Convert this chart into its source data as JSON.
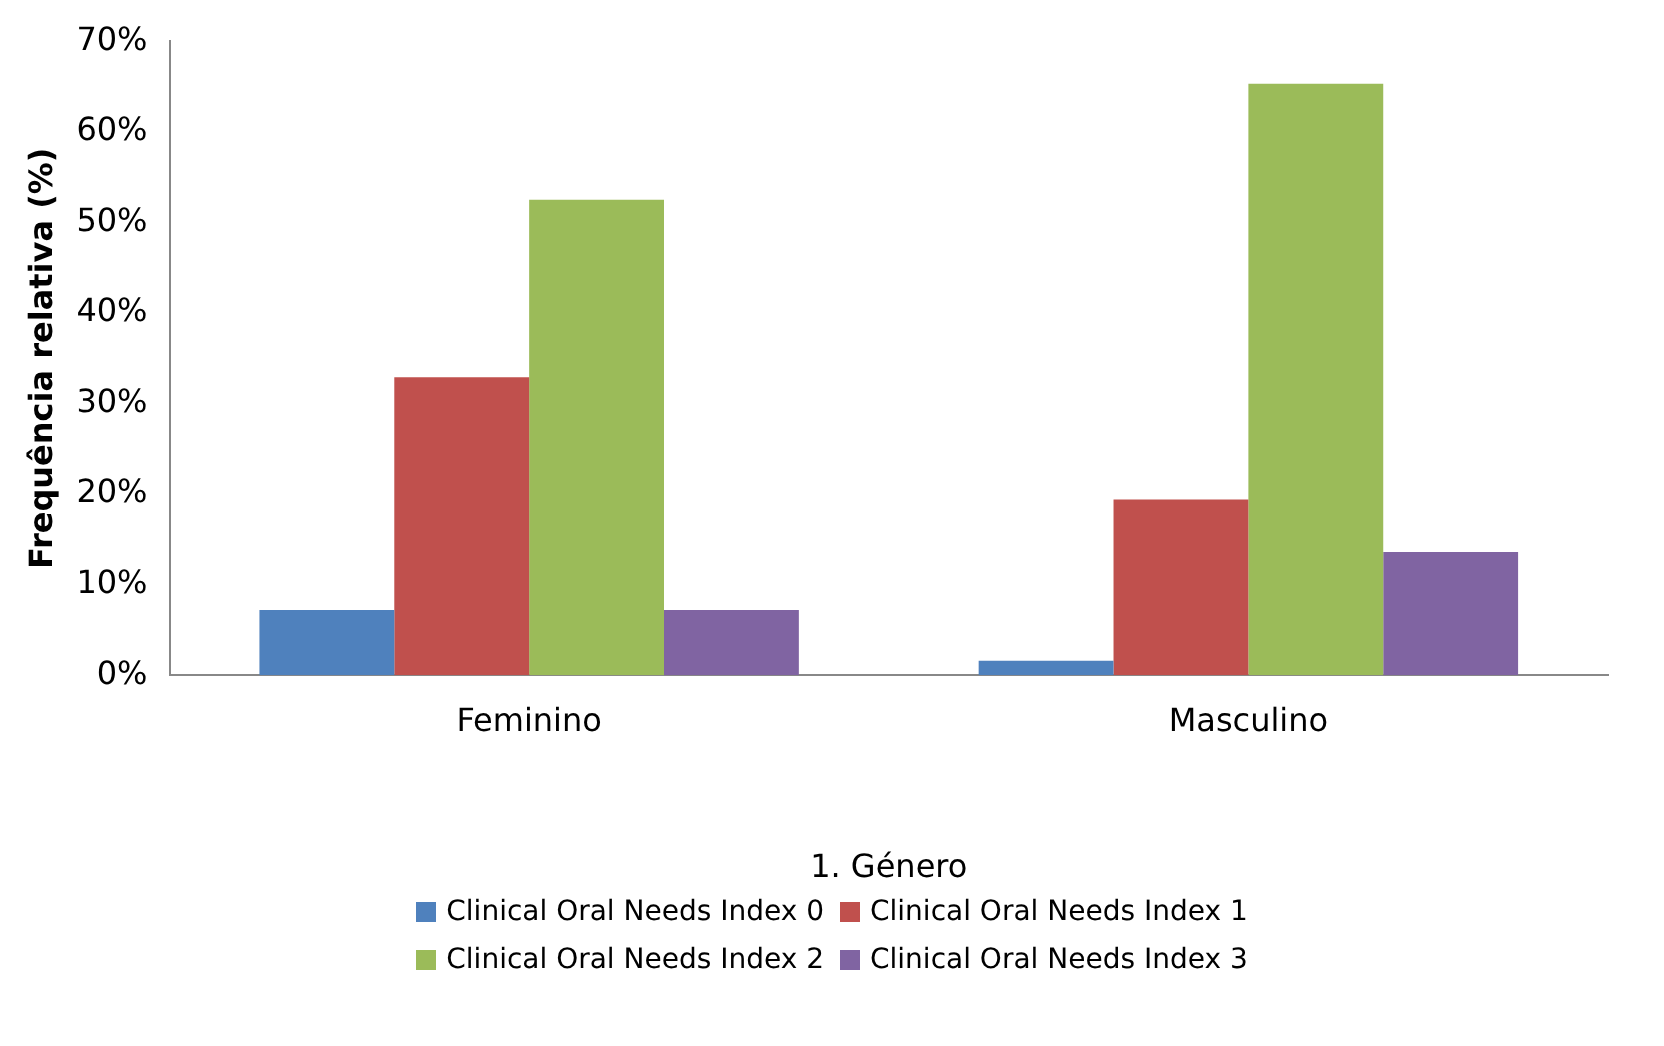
{
  "chart_data": {
    "type": "bar",
    "ylabel": "Frequência relativa (%)",
    "xlabel": "1. Género",
    "categories": [
      "Feminino",
      "Masculino"
    ],
    "series": [
      {
        "name": "Clinical Oral Needs Index 0",
        "color": "#4f81bd",
        "values": [
          7.2,
          1.6
        ]
      },
      {
        "name": "Clinical Oral Needs Index 1",
        "color": "#c0504d",
        "values": [
          32.9,
          19.4
        ]
      },
      {
        "name": "Clinical Oral Needs Index 2",
        "color": "#9bbb59",
        "values": [
          52.5,
          65.3
        ]
      },
      {
        "name": "Clinical Oral Needs Index 3",
        "color": "#8064a2",
        "values": [
          7.2,
          13.6
        ]
      }
    ],
    "ylim": [
      0,
      70
    ],
    "yticks": [
      {
        "value": 0,
        "label": "0%"
      },
      {
        "value": 10,
        "label": "10%"
      },
      {
        "value": 20,
        "label": "20%"
      },
      {
        "value": 30,
        "label": "30%"
      },
      {
        "value": 40,
        "label": "40%"
      },
      {
        "value": 50,
        "label": "50%"
      },
      {
        "value": 60,
        "label": "60%"
      },
      {
        "value": 70,
        "label": "70%"
      }
    ],
    "grid": false,
    "legend": "bottom"
  }
}
